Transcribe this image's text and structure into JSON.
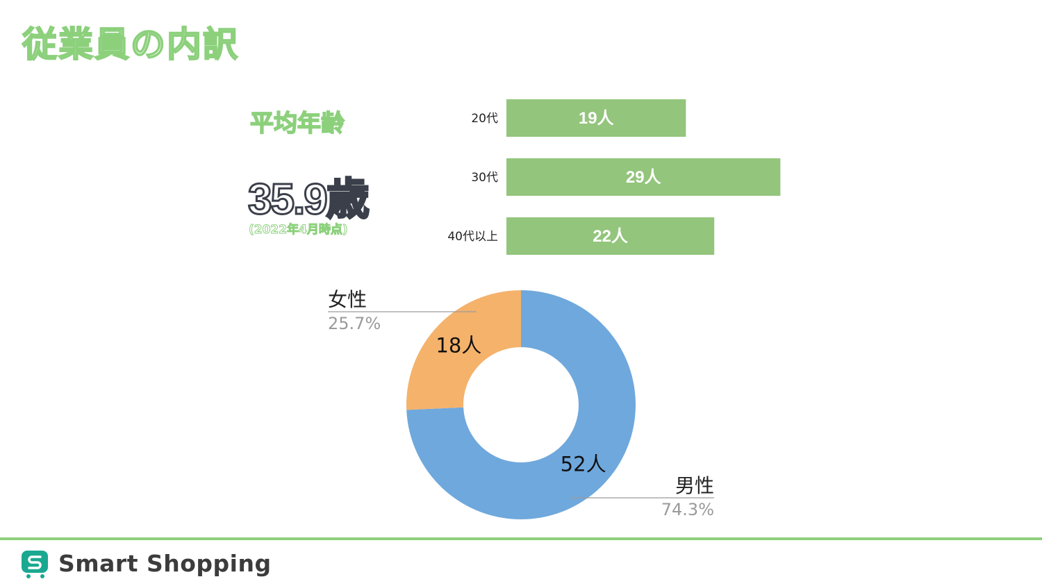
{
  "page": {
    "title": "従業員の内訳"
  },
  "average_age": {
    "label": "平均年齢",
    "value": "35.9歳",
    "note": "(2022年4月時点)"
  },
  "footer": {
    "brand": "Smart Shopping",
    "brand_color": "#1aa891",
    "accent_color": "#8cd07c"
  },
  "chart_data": [
    {
      "type": "bar",
      "orientation": "horizontal",
      "categories": [
        "20代",
        "30代",
        "40代以上"
      ],
      "values": [
        19,
        29,
        22
      ],
      "value_labels": [
        "19人",
        "29人",
        "22人"
      ],
      "color": "#93c57c"
    },
    {
      "type": "pie",
      "variant": "donut",
      "slices": [
        {
          "name": "男性",
          "value": 52,
          "value_label": "52人",
          "percent": "74.3%",
          "color": "#6fa8dc"
        },
        {
          "name": "女性",
          "value": 18,
          "value_label": "18人",
          "percent": "25.7%",
          "color": "#f4b26b"
        }
      ]
    }
  ]
}
